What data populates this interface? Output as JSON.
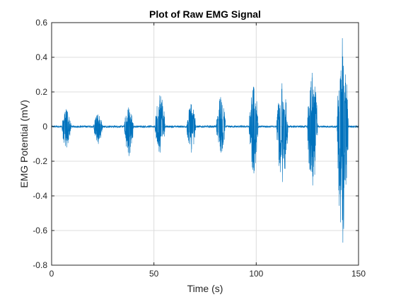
{
  "chart_data": {
    "type": "line",
    "title": "Plot of Raw EMG Signal",
    "xlabel": "Time (s)",
    "ylabel": "EMG Potential (mV)",
    "xlim": [
      0,
      150
    ],
    "ylim": [
      -0.8,
      0.6
    ],
    "xticks": [
      0,
      50,
      100,
      150
    ],
    "yticks": [
      -0.8,
      -0.6,
      -0.4,
      -0.2,
      0,
      0.2,
      0.4,
      0.6
    ],
    "grid": true,
    "baseline_noise": 0.006,
    "series_color": "#0072BD",
    "bursts": [
      {
        "start": 5.0,
        "end": 9.5,
        "max": 0.1,
        "min": -0.12
      },
      {
        "start": 20.5,
        "end": 25.0,
        "max": 0.07,
        "min": -0.1
      },
      {
        "start": 35.5,
        "end": 40.0,
        "max": 0.11,
        "min": -0.17
      },
      {
        "start": 50.5,
        "end": 55.5,
        "max": 0.18,
        "min": -0.15
      },
      {
        "start": 66.0,
        "end": 70.5,
        "max": 0.13,
        "min": -0.15
      },
      {
        "start": 80.5,
        "end": 85.0,
        "max": 0.17,
        "min": -0.15
      },
      {
        "start": 96.5,
        "end": 101.0,
        "max": 0.23,
        "min": -0.27
      },
      {
        "start": 110.0,
        "end": 115.5,
        "max": 0.25,
        "min": -0.32
      },
      {
        "start": 125.0,
        "end": 130.0,
        "max": 0.31,
        "min": -0.34
      },
      {
        "start": 139.5,
        "end": 145.0,
        "max": 0.51,
        "min": -0.67
      }
    ]
  }
}
